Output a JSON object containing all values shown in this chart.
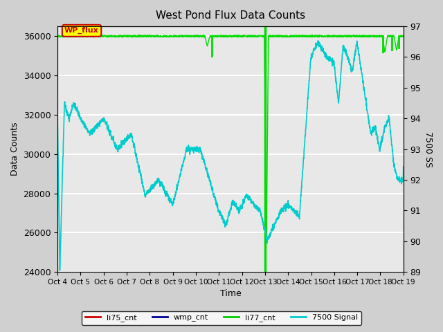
{
  "title": "West Pond Flux Data Counts",
  "xlabel": "Time",
  "ylabel_left": "Data Counts",
  "ylabel_right": "7500 SS",
  "left_ylim": [
    24000,
    36500
  ],
  "right_ylim": [
    89.0,
    97.0
  ],
  "legend_labels": [
    "li75_cnt",
    "wmp_cnt",
    "li77_cnt",
    "7500 Signal"
  ],
  "legend_colors": [
    "#cc0000",
    "#000099",
    "#00cc00",
    "#00cccc"
  ],
  "wp_flux_label": "WP_flux",
  "li77_color": "#00dd00",
  "cyan_color": "#00cccc",
  "x_tick_labels": [
    "Oct 4",
    "Oct 5",
    "Oct 6",
    "Oct 7",
    "Oct 8",
    "Oct 9",
    "Oct 10",
    "Oct 11",
    "Oct 12",
    "Oct 13",
    "Oct 14",
    "Oct 15",
    "Oct 16",
    "Oct 17",
    "Oct 18",
    "Oct 19"
  ]
}
